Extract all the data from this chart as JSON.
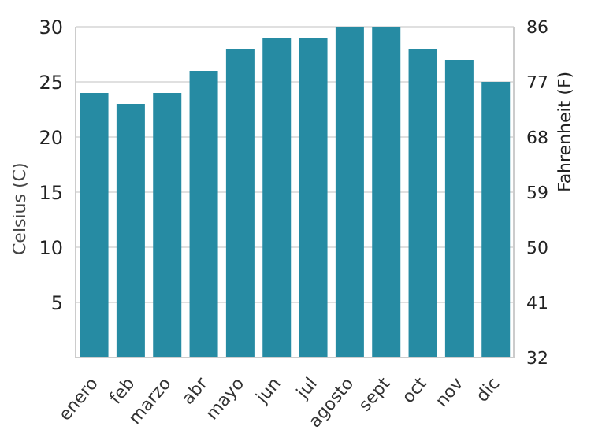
{
  "chart_data": {
    "type": "bar",
    "categories": [
      "enero",
      "feb",
      "marzo",
      "abr",
      "mayo",
      "jun",
      "jul",
      "agosto",
      "sept",
      "oct",
      "nov",
      "dic"
    ],
    "values": [
      24,
      23,
      24,
      26,
      28,
      29,
      29,
      30,
      30,
      28,
      27,
      25
    ],
    "color": "#268ba3",
    "ylabel": "Celsius (C)",
    "y2label": "Fahrenheit (F)",
    "ylim": [
      0,
      30
    ],
    "yticks": [
      5,
      10,
      15,
      20,
      25,
      30
    ],
    "y2lim": [
      32,
      86
    ],
    "y2ticks": [
      32,
      41,
      50,
      59,
      68,
      77,
      86
    ],
    "grid": "y"
  }
}
